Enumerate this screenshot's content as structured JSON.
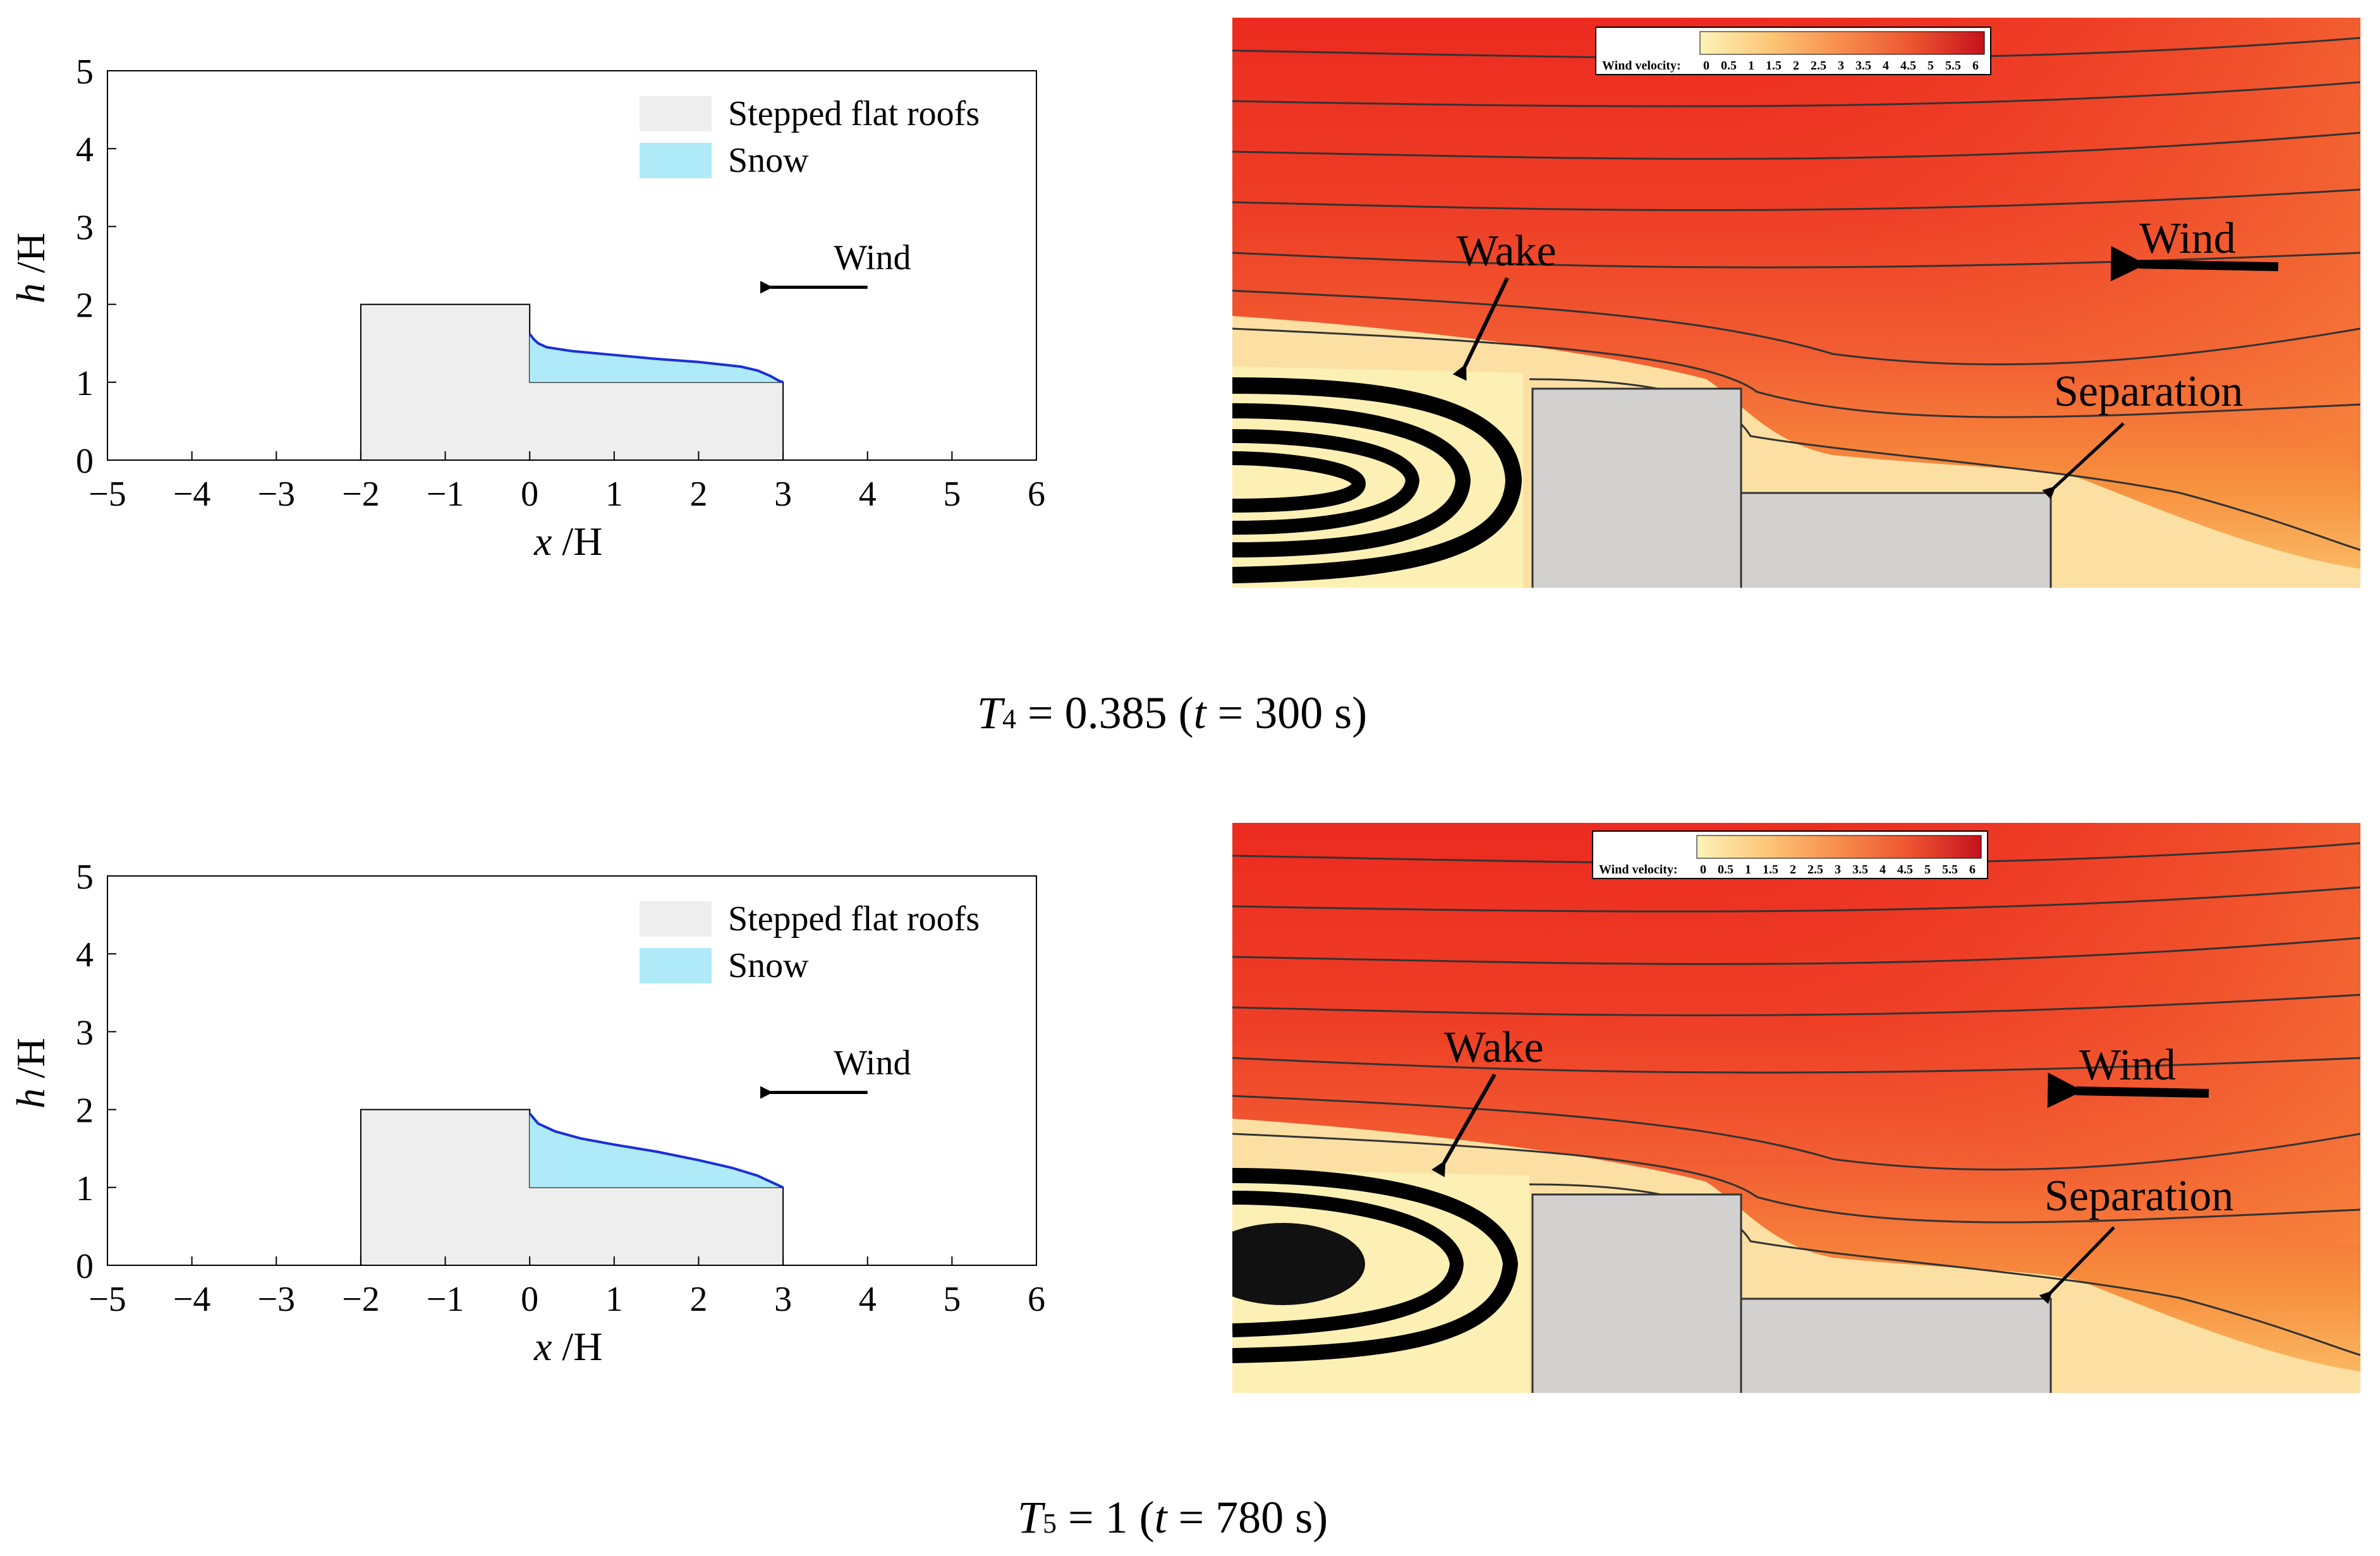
{
  "chart_data": [
    {
      "type": "area",
      "panel": "top-left",
      "xlabel_var": "x",
      "xlabel_unit": " /H",
      "ylabel_var": "h",
      "ylabel_unit": " /H",
      "xlim": [
        -5,
        6
      ],
      "ylim": [
        0,
        5
      ],
      "xticks": [
        "−5",
        "−4",
        "−3",
        "−2",
        "−1",
        "0",
        "1",
        "2",
        "3",
        "4",
        "5",
        "6"
      ],
      "yticks": [
        "0",
        "1",
        "2",
        "3",
        "4",
        "5"
      ],
      "legend": [
        "Stepped flat roofs",
        "Snow"
      ],
      "wind_label": "Wind",
      "roof_outline": {
        "x": [
          -2,
          -2,
          0,
          0,
          3,
          3
        ],
        "y": [
          0,
          2,
          2,
          1,
          1,
          0
        ]
      },
      "snow_surface": {
        "x": [
          0,
          0.05,
          0.1,
          0.2,
          0.5,
          1,
          1.5,
          2,
          2.5,
          2.7,
          2.85,
          2.95,
          3
        ],
        "y": [
          1.62,
          1.55,
          1.5,
          1.45,
          1.4,
          1.35,
          1.3,
          1.26,
          1.2,
          1.15,
          1.08,
          1.02,
          1.0
        ]
      }
    },
    {
      "type": "area",
      "panel": "bottom-left",
      "xlabel_var": "x",
      "xlabel_unit": " /H",
      "ylabel_var": "h",
      "ylabel_unit": " /H",
      "xlim": [
        -5,
        6
      ],
      "ylim": [
        0,
        5
      ],
      "xticks": [
        "−5",
        "−4",
        "−3",
        "−2",
        "−1",
        "0",
        "1",
        "2",
        "3",
        "4",
        "5",
        "6"
      ],
      "yticks": [
        "0",
        "1",
        "2",
        "3",
        "4",
        "5"
      ],
      "legend": [
        "Stepped flat roofs",
        "Snow"
      ],
      "wind_label": "Wind",
      "roof_outline": {
        "x": [
          -2,
          -2,
          0,
          0,
          3,
          3
        ],
        "y": [
          0,
          2,
          2,
          1,
          1,
          0
        ]
      },
      "snow_surface": {
        "x": [
          0,
          0.1,
          0.3,
          0.6,
          1,
          1.5,
          2,
          2.4,
          2.7,
          2.9,
          3
        ],
        "y": [
          1.95,
          1.82,
          1.72,
          1.63,
          1.55,
          1.46,
          1.35,
          1.25,
          1.15,
          1.05,
          1.0
        ]
      }
    }
  ],
  "contour_panels": [
    {
      "panel": "top-right",
      "colorbar_title": "Wind velocity:",
      "colorbar_ticks": [
        "0",
        "0.5",
        "1",
        "1.5",
        "2",
        "2.5",
        "3",
        "3.5",
        "4",
        "4.5",
        "5",
        "5.5",
        "6"
      ],
      "annotations": {
        "wake": "Wake",
        "wind": "Wind",
        "separation": "Separation"
      }
    },
    {
      "panel": "bottom-right",
      "colorbar_title": "Wind velocity:",
      "colorbar_ticks": [
        "0",
        "0.5",
        "1",
        "1.5",
        "2",
        "2.5",
        "3",
        "3.5",
        "4",
        "4.5",
        "5",
        "5.5",
        "6"
      ],
      "annotations": {
        "wake": "Wake",
        "wind": "Wind",
        "separation": "Separation"
      }
    }
  ],
  "captions": [
    {
      "var": "T",
      "sub": "4",
      "rest1": " = 0.385 (",
      "tvar": "t",
      "rest2": " = 300 s)"
    },
    {
      "var": "T",
      "sub": "5",
      "rest1": " = 1 (",
      "tvar": "t",
      "rest2": " = 780 s)"
    }
  ],
  "colors": {
    "roof_fill": "#eeeeee",
    "snow_fill": "#aeeaf8",
    "snow_line": "#1a2fd6",
    "building_fill": "#d3d0d0",
    "colormap": [
      "#fdf3b8",
      "#fde6a0",
      "#fdd68a",
      "#fcc576",
      "#fbb366",
      "#f9a058",
      "#f78c4c",
      "#f47a41",
      "#f06638",
      "#ec5430",
      "#e5412a",
      "#dd2e24",
      "#d11b20"
    ]
  }
}
